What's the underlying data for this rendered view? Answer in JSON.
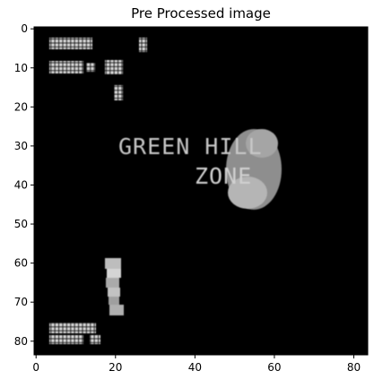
{
  "figure": {
    "title": "Pre Processed image"
  },
  "image": {
    "description_colors": {
      "background": "#000000",
      "text_pixels": "#cfcfcf",
      "blob": "#9a9a9a"
    },
    "overlay_text": {
      "title_line1": "GREEN HILL",
      "title_line2": "ZONE"
    }
  },
  "axes": {
    "xlim": [
      -0.5,
      83.5
    ],
    "ylim": [
      83.5,
      -0.5
    ],
    "x_ticks": [
      0,
      20,
      40,
      60,
      80
    ],
    "y_ticks": [
      0,
      10,
      20,
      30,
      40,
      50,
      60,
      70,
      80
    ],
    "x_tick_labels": [
      "0",
      "20",
      "40",
      "60",
      "80"
    ],
    "y_tick_labels": [
      "0",
      "10",
      "20",
      "30",
      "40",
      "50",
      "60",
      "70",
      "80"
    ]
  }
}
